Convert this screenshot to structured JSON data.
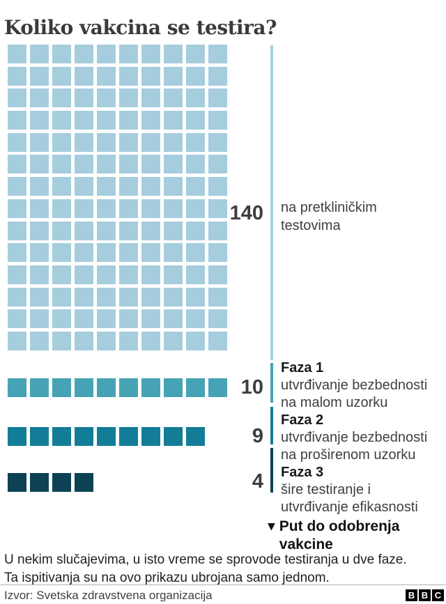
{
  "title": "Koliko vakcina se testira?",
  "chart_data": {
    "type": "waffle",
    "title": "Koliko vakcina se testira?",
    "grid_columns": 10,
    "unit_value": 1,
    "legend_position": "right",
    "sections": [
      {
        "label": "na pretkliničkim testovima",
        "label_lines": [
          "na pretkliničkim",
          "testovima"
        ],
        "value": 140,
        "color": "#a5cddd",
        "line_color": "#a9d1e2"
      },
      {
        "heading": "Faza 1",
        "label": "utvrđivanje bezbednosti na malom uzorku",
        "label_lines": [
          "utvrđivanje bezbednosti",
          "na malom uzorku"
        ],
        "value": 10,
        "color": "#46a3b5"
      },
      {
        "heading": "Faza 2",
        "label": "utvrđivanje bezbednosti na proširenom uzorku",
        "label_lines": [
          "utvrđivanje bezbednosti",
          "na proširenom uzorku"
        ],
        "value": 9,
        "color": "#137d98"
      },
      {
        "heading": "Faza 3",
        "label": "šire testiranje i utvrđivanje efikasnosti",
        "label_lines": [
          "šire testiranje i",
          "utvrđivanje efikasnosti"
        ],
        "value": 4,
        "color": "#0d4254"
      }
    ],
    "path_label": {
      "arrow": "▼",
      "text": "Put do odobrenja vakcine",
      "lines": [
        "Put do odobrenja",
        "vakcine"
      ]
    }
  },
  "footnote": {
    "text": "U nekim slučajevima, u isto vreme se sprovode testiranja u dve faze. Ta ispitivanja su na ovo prikazu ubrojana samo jednom.",
    "lines": [
      "U nekim slučajevima, u isto vreme se sprovode testiranja u dve faze.",
      "Ta ispitivanja su na ovo prikazu ubrojana samo jednom."
    ]
  },
  "footer": {
    "source": "Izvor: Svetska zdravstvena organizacija",
    "logo_letters": [
      "B",
      "B",
      "C"
    ]
  }
}
